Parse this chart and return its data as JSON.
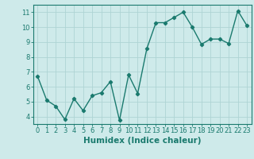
{
  "x": [
    0,
    1,
    2,
    3,
    4,
    5,
    6,
    7,
    8,
    9,
    10,
    11,
    12,
    13,
    14,
    15,
    16,
    17,
    18,
    19,
    20,
    21,
    22,
    23
  ],
  "y": [
    6.7,
    5.1,
    4.7,
    3.8,
    5.2,
    4.4,
    5.4,
    5.6,
    6.35,
    3.75,
    6.8,
    5.55,
    8.55,
    10.3,
    10.3,
    10.65,
    11.0,
    10.0,
    8.85,
    9.2,
    9.2,
    8.9,
    11.1,
    10.1
  ],
  "line_color": "#1a7a6e",
  "marker": "D",
  "markersize": 2.2,
  "linewidth": 1.0,
  "bg_color": "#ceeaea",
  "grid_color": "#aed4d4",
  "xlabel": "Humidex (Indice chaleur)",
  "ylabel": "",
  "xlim": [
    -0.5,
    23.5
  ],
  "ylim": [
    3.5,
    11.5
  ],
  "yticks": [
    4,
    5,
    6,
    7,
    8,
    9,
    10,
    11
  ],
  "xticks": [
    0,
    1,
    2,
    3,
    4,
    5,
    6,
    7,
    8,
    9,
    10,
    11,
    12,
    13,
    14,
    15,
    16,
    17,
    18,
    19,
    20,
    21,
    22,
    23
  ],
  "tick_fontsize": 6.0,
  "xlabel_fontsize": 7.5,
  "axis_color": "#1a7a6e"
}
